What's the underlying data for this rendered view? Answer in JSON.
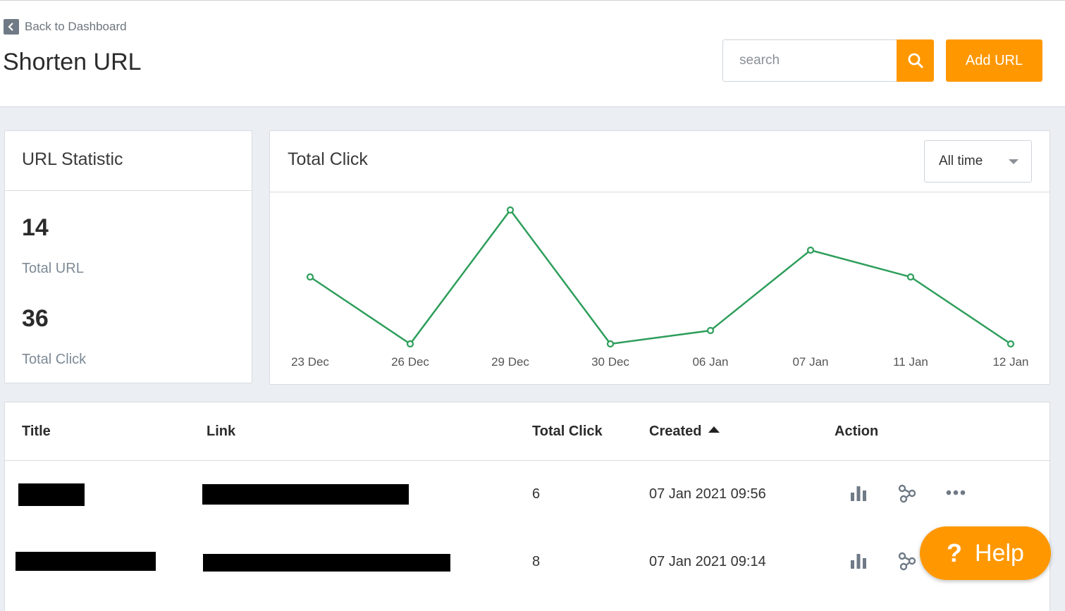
{
  "header": {
    "back_label": "Back to Dashboard",
    "title": "Shorten URL",
    "search_placeholder": "search",
    "add_label": "Add URL"
  },
  "stats": {
    "title": "URL Statistic",
    "total_url": "14",
    "total_url_label": "Total URL",
    "total_click": "36",
    "total_click_label": "Total Click"
  },
  "chart_panel": {
    "title": "Total Click",
    "range_label": "All time"
  },
  "chart_data": {
    "type": "line",
    "categories": [
      "23 Dec",
      "26 Dec",
      "29 Dec",
      "30 Dec",
      "06 Jan",
      "07 Jan",
      "11 Jan",
      "12 Jan"
    ],
    "values": [
      6,
      1,
      11,
      1,
      2,
      8,
      6,
      1
    ],
    "title": "Total Click",
    "ylim": [
      1,
      11
    ],
    "line_color": "#2e9e5b",
    "grid": false
  },
  "table": {
    "headers": {
      "title": "Title",
      "link": "Link",
      "total_click": "Total Click",
      "created": "Created",
      "action": "Action"
    },
    "rows": [
      {
        "clicks": "6",
        "created": "07 Jan 2021 09:56"
      },
      {
        "clicks": "8",
        "created": "07 Jan 2021 09:14"
      }
    ]
  },
  "help": {
    "icon": "?",
    "label": "Help"
  },
  "colors": {
    "accent": "#ff9800",
    "line": "#2e9e5b",
    "icon": "#6f7a86"
  }
}
